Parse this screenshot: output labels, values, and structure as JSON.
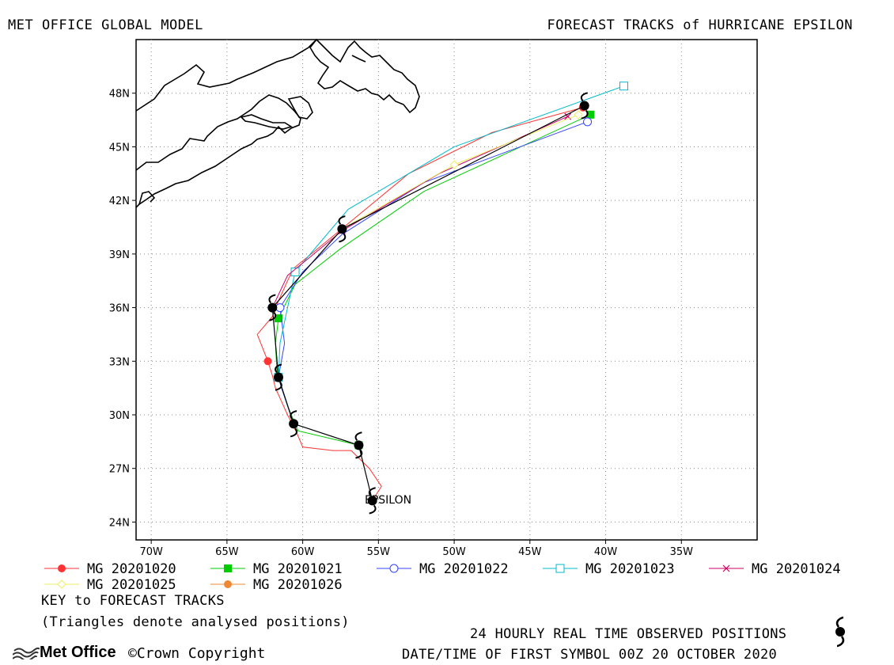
{
  "header": {
    "left_title": "MET OFFICE GLOBAL MODEL",
    "right_title": "FORECAST TRACKS of HURRICANE EPSILON"
  },
  "map": {
    "lon_range": [
      -71,
      -30
    ],
    "lat_range": [
      23,
      51
    ],
    "lon_ticks": [
      -70,
      -65,
      -60,
      -55,
      -50,
      -45,
      -40,
      -35
    ],
    "lon_tick_labels": [
      "70W",
      "65W",
      "60W",
      "55W",
      "50W",
      "45W",
      "40W",
      "35W"
    ],
    "lat_ticks": [
      24,
      27,
      30,
      33,
      36,
      39,
      42,
      45,
      48
    ],
    "lat_tick_labels": [
      "24N",
      "27N",
      "30N",
      "33N",
      "36N",
      "39N",
      "42N",
      "45N",
      "48N"
    ],
    "grid": true,
    "storm_label": "EPSILON"
  },
  "chart_data": {
    "type": "line",
    "title": "FORECAST TRACKS of HURRICANE EPSILON",
    "xlabel": "",
    "ylabel": "",
    "xlim": [
      -71,
      -30
    ],
    "ylim": [
      23,
      51
    ],
    "observed": {
      "lon": [
        -55.4,
        -56.3,
        -60.6,
        -61.6,
        -62.0,
        -57.4,
        -41.4
      ],
      "lat": [
        25.2,
        28.3,
        29.5,
        32.1,
        36.0,
        40.4,
        47.3
      ]
    },
    "series": [
      {
        "name": "MG 20201020",
        "color": "#ff3333",
        "marker": "dot",
        "lon": [
          -55.4,
          -54.8,
          -55.6,
          -56.8,
          -58.0,
          -60.0,
          -60.4,
          -61.0,
          -61.8,
          -62.0,
          -62.3,
          -63.0,
          -62.0,
          -61.8,
          -61.0,
          -60.6,
          -58.0,
          -53.0,
          -47.5,
          -41.5
        ],
        "lat": [
          25.2,
          26.0,
          27.0,
          28.0,
          28.0,
          28.2,
          29.0,
          30.0,
          31.5,
          32.2,
          33.0,
          34.5,
          35.5,
          36.0,
          37.5,
          38.2,
          40.0,
          43.5,
          45.8,
          47.2
        ]
      },
      {
        "name": "MG 20201021",
        "color": "#00cc00",
        "marker": "square",
        "lon": [
          -56.3,
          -60.3,
          -61.0,
          -61.7,
          -61.8,
          -61.6,
          -60.5,
          -57.5,
          -52.0,
          -41.0
        ],
        "lat": [
          28.3,
          29.1,
          30.5,
          32.4,
          34.0,
          35.4,
          37.3,
          39.3,
          42.5,
          46.8
        ]
      },
      {
        "name": "MG 20201022",
        "color": "#3344ff",
        "marker": "circle",
        "lon": [
          -60.6,
          -61.4,
          -61.6,
          -61.2,
          -61.5,
          -60.0,
          -57.4,
          -52.0,
          -41.2
        ],
        "lat": [
          29.5,
          31.5,
          32.1,
          34.0,
          36.0,
          38.0,
          40.1,
          43.0,
          46.4
        ]
      },
      {
        "name": "MG 20201023",
        "color": "#00bbcc",
        "marker": "opensquare",
        "lon": [
          -61.6,
          -61.5,
          -61.0,
          -60.5,
          -57.0,
          -50.0,
          -38.8
        ],
        "lat": [
          32.1,
          34.0,
          36.0,
          38.0,
          41.5,
          45.0,
          48.4
        ]
      },
      {
        "name": "MG 20201024",
        "color": "#cc0066",
        "marker": "cross",
        "lon": [
          -62.0,
          -61.0,
          -57.4,
          -51.0,
          -42.5
        ],
        "lat": [
          36.0,
          37.8,
          40.3,
          43.5,
          46.7
        ]
      },
      {
        "name": "MG 20201025",
        "color": "#eeee66",
        "marker": "diamond",
        "lon": [
          -57.4,
          -50.0,
          -41.8
        ],
        "lat": [
          40.4,
          44.0,
          46.8
        ]
      },
      {
        "name": "MG 20201026",
        "color": "#ee8833",
        "marker": "dot",
        "lon": [
          -41.4
        ],
        "lat": [
          47.3
        ]
      }
    ]
  },
  "legend": {
    "key_title": "KEY to FORECAST TRACKS",
    "key_note": "(Triangles denote analysed positions)",
    "observed_note": "24 HOURLY REAL TIME OBSERVED POSITIONS",
    "datetime_note": "DATE/TIME OF FIRST SYMBOL 00Z 20 OCTOBER 2020"
  },
  "footer": {
    "logo_text": "Met Office",
    "copyright": "©Crown Copyright"
  }
}
